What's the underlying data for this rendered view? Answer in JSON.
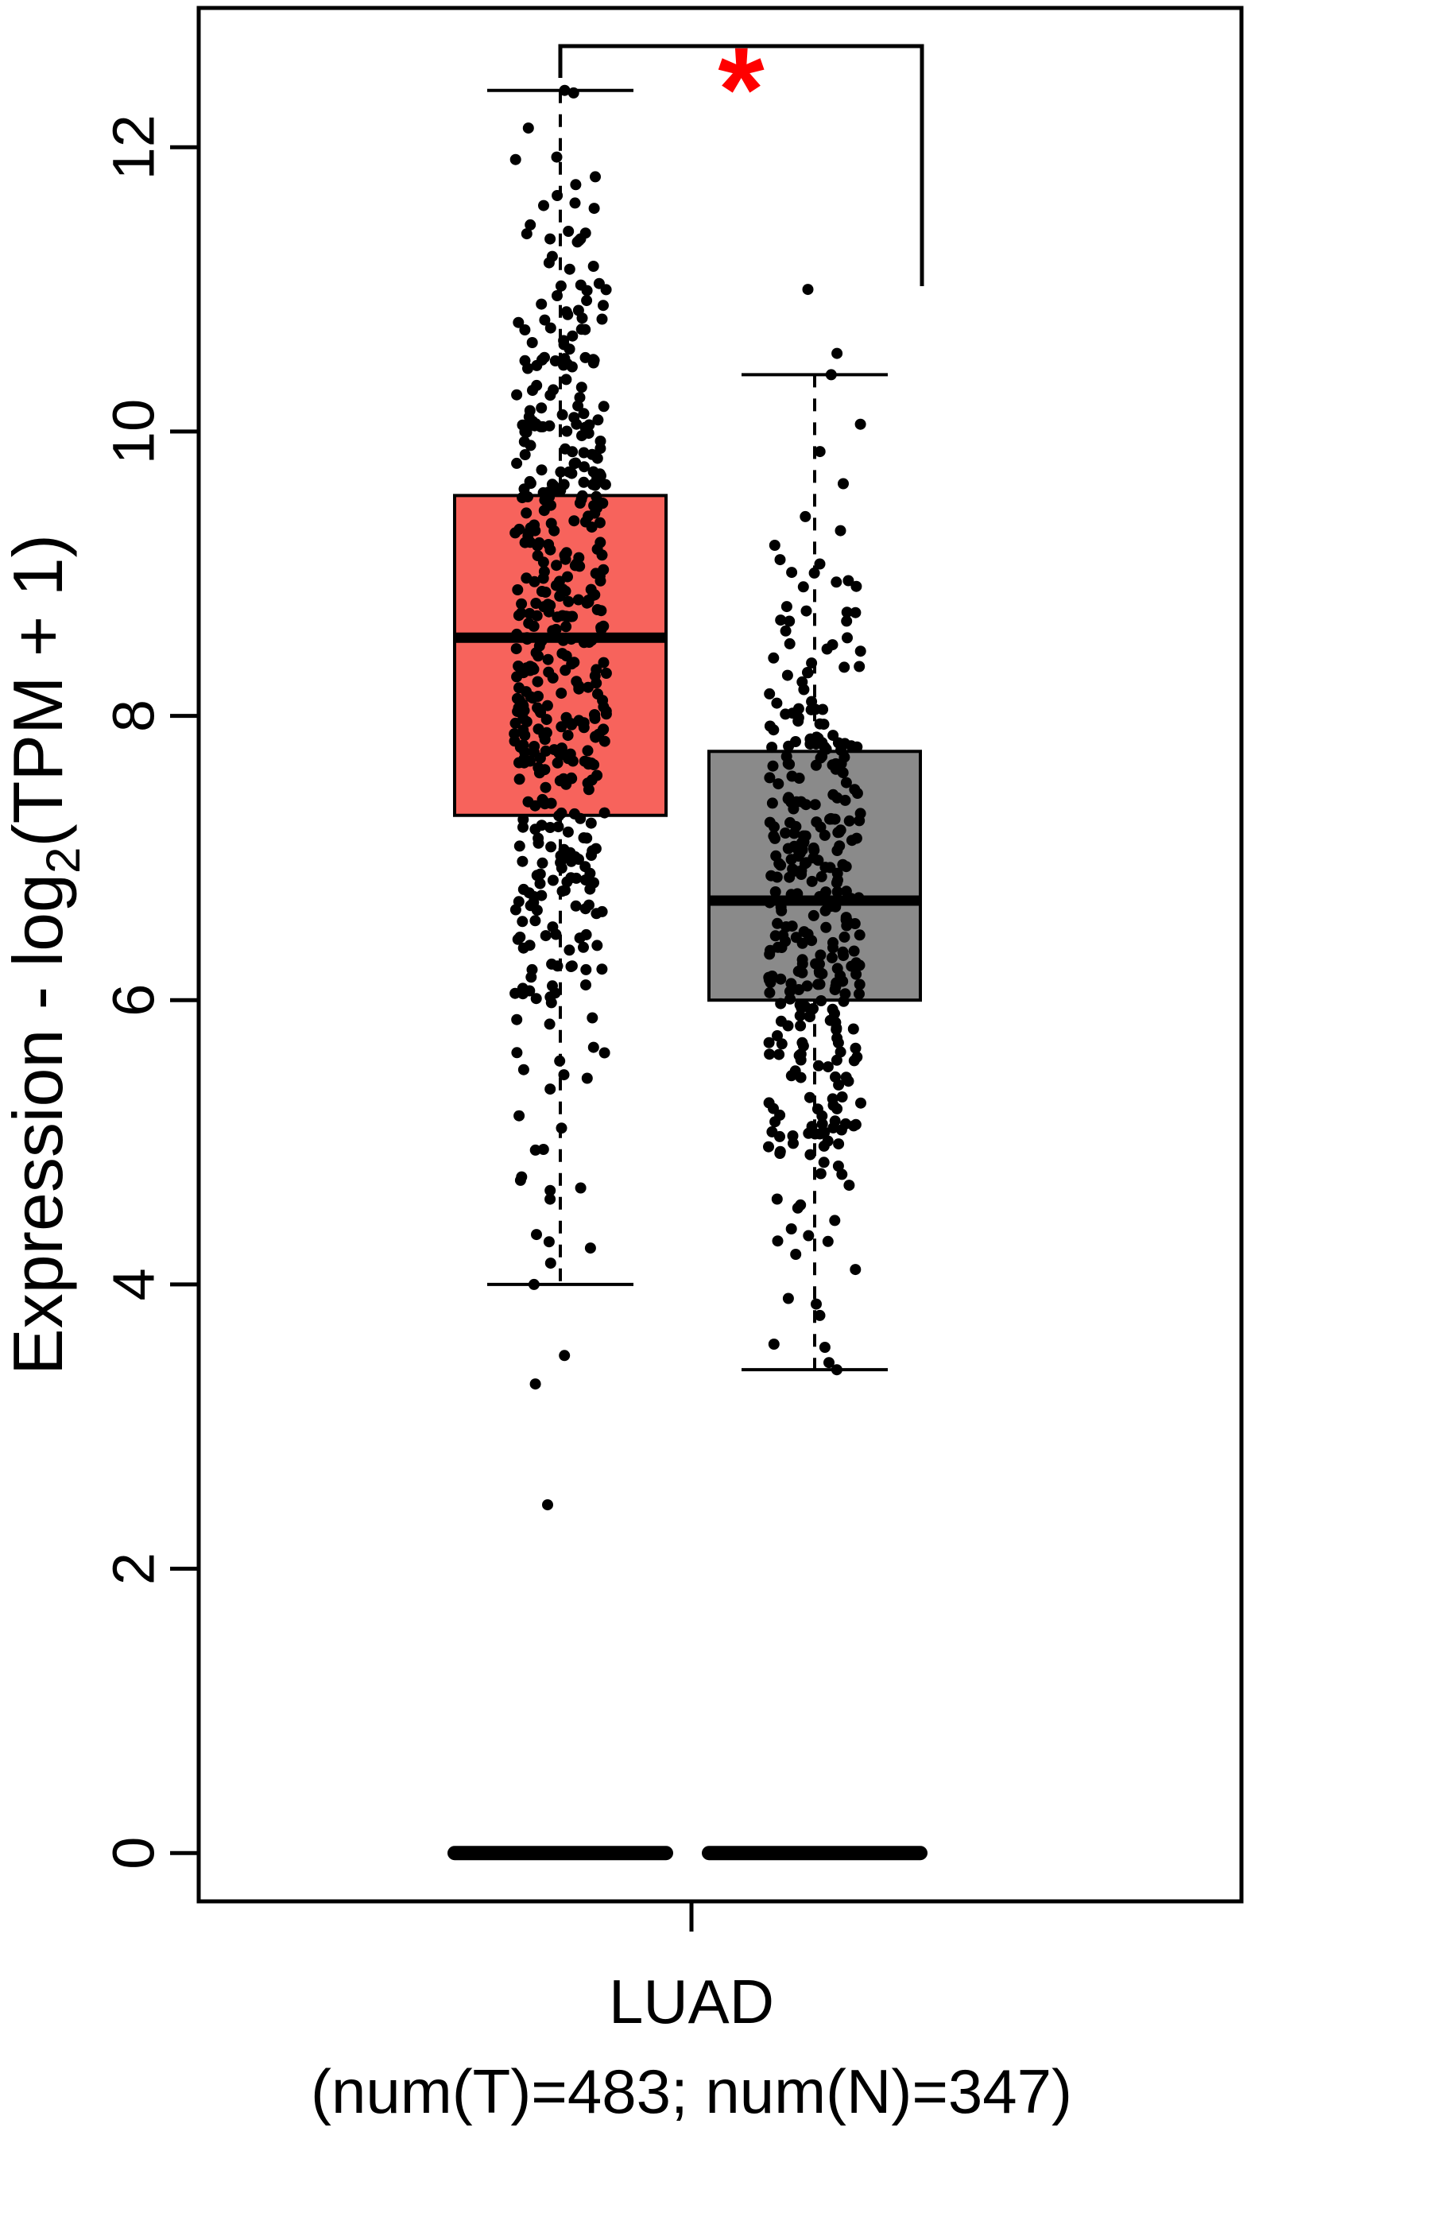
{
  "page": {
    "background": "#FFFFFF"
  },
  "chart_data": {
    "type": "boxplot",
    "title": "",
    "ylabel": {
      "before_sub": "Expression - log",
      "sub": "2",
      "after_sub": "(TPM + 1)"
    },
    "yticks": [
      0,
      2,
      4,
      6,
      8,
      10,
      12
    ],
    "ylim": [
      -0.34,
      12.98
    ],
    "grid": false,
    "x_axis": {
      "group_label": "LUAD",
      "group_sublabel": "(num(T)=483; num(N)=347)"
    },
    "significance": {
      "marker": "*",
      "color": "#FF0000"
    },
    "axis_color": "#000000",
    "dot_color": "#000000",
    "groups": [
      {
        "id": "tumor",
        "label": "T",
        "n": 483,
        "fill": "#F7635C",
        "box": {
          "lower_whisker": 4.0,
          "q1": 7.3,
          "median": 8.55,
          "q3": 9.55,
          "upper_whisker": 12.4
        },
        "outliers": [
          12.4,
          5.1,
          4.95,
          4.6,
          4.3,
          4.15,
          4.0,
          3.5,
          3.3,
          2.45
        ],
        "zero_expression_bar": true
      },
      {
        "id": "normal",
        "label": "N",
        "n": 347,
        "fill": "#8A8A8A",
        "box": {
          "lower_whisker": 3.4,
          "q1": 6.0,
          "median": 6.7,
          "q3": 7.75,
          "upper_whisker": 10.4
        },
        "outliers": [
          10.4,
          10.55,
          11.0,
          3.45,
          3.4
        ],
        "zero_expression_bar": true
      }
    ]
  }
}
